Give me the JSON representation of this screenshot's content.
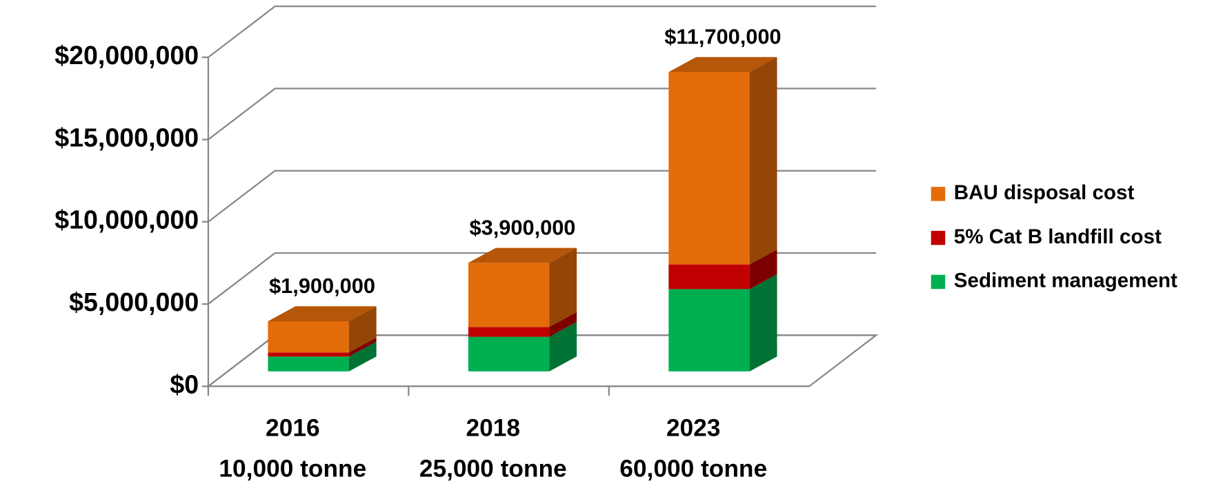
{
  "chart_data": {
    "type": "stacked-bar-3d",
    "categories": [
      [
        "2016",
        "10,000 tonne"
      ],
      [
        "2018",
        "25,000 tonne"
      ],
      [
        "2023",
        "60,000 tonne"
      ]
    ],
    "series": [
      {
        "name": "BAU disposal cost",
        "color": "#E46C0A",
        "values": [
          1900000,
          3900000,
          11700000
        ],
        "value_labels": [
          "$1,900,000",
          "$3,900,000",
          "$11,700,000"
        ]
      },
      {
        "name": "5% Cat B landfill cost",
        "color": "#C00000",
        "values": [
          250000,
          600000,
          1500000
        ]
      },
      {
        "name": "Sediment management",
        "color": "#00B050",
        "values": [
          900000,
          2100000,
          5000000
        ]
      }
    ],
    "ylim": [
      0,
      20000000
    ],
    "yticks": [
      {
        "value": 0,
        "label": "$0"
      },
      {
        "value": 5000000,
        "label": "$5,000,000"
      },
      {
        "value": 10000000,
        "label": "$10,000,000"
      },
      {
        "value": 15000000,
        "label": "$15,000,000"
      },
      {
        "value": 20000000,
        "label": "$20,000,000"
      }
    ],
    "grid": true,
    "legend": "right"
  }
}
